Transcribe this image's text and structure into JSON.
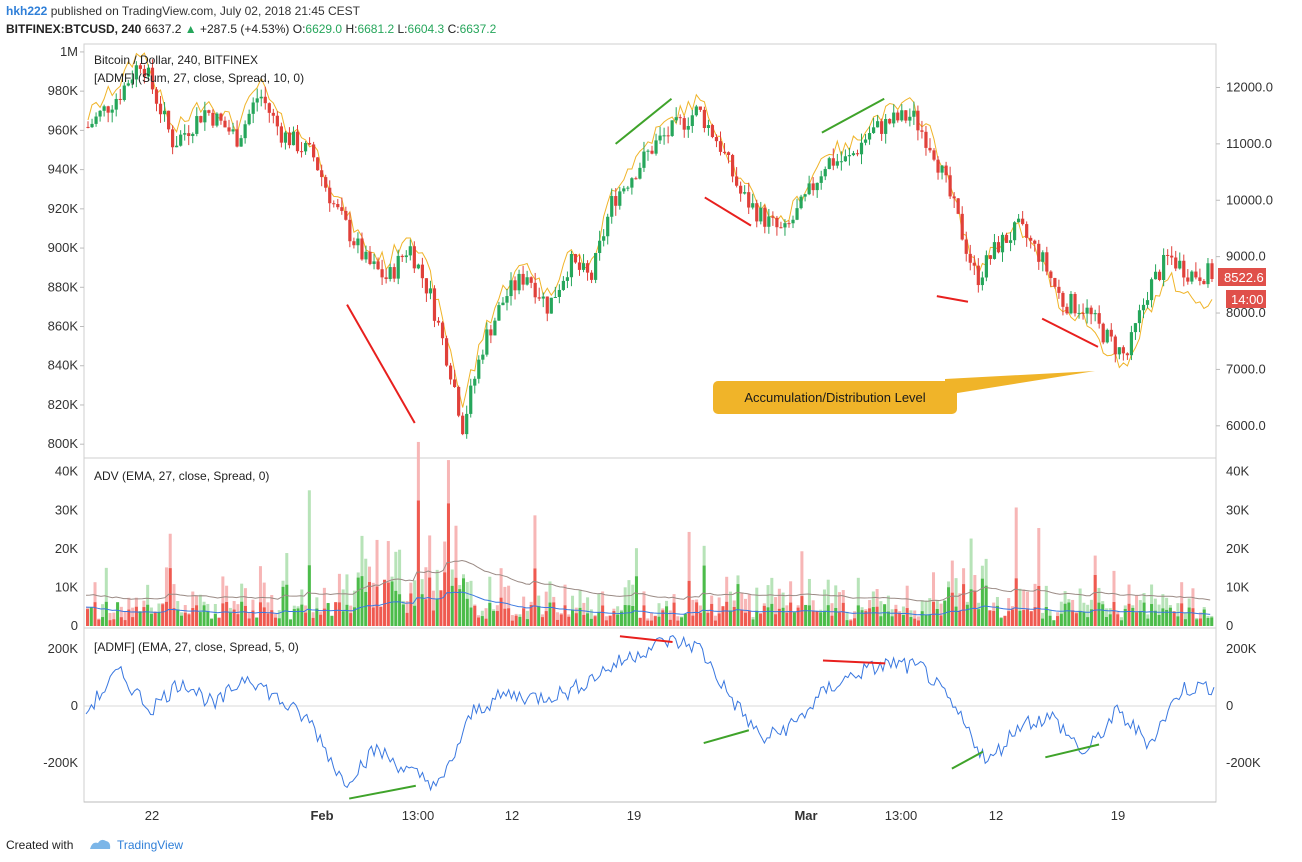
{
  "header": {
    "user": "hkh222",
    "published": "published on TradingView.com, July 02, 2018 21:45 CEST",
    "symbol": "BITFINEX:BTCUSD, 240",
    "last": "6637.2",
    "change_arrow": "▲",
    "change": "+287.5 (+4.53%)",
    "o_label": "O:",
    "o_val": "6629.0",
    "h_label": "H:",
    "h_val": "6681.2",
    "l_label": "L:",
    "l_val": "6604.3",
    "c_label": "C:",
    "c_val": "6637.2"
  },
  "panes": {
    "main_title": "Bitcoin / Dollar, 240, BITFINEX",
    "main_indicator": "[ADMF] (Sum, 27, close, Spread, 10, 0)",
    "volume_title": "ADV (EMA, 27, close, Spread, 0)",
    "osc_title": "[ADMF] (EMA, 27, close, Spread, 5, 0)"
  },
  "price_badge": "8522.6",
  "time_badge": "14:00",
  "annotation": "Accumulation/Distribution Level",
  "footer": {
    "created": "Created with",
    "brand": "TradingView"
  },
  "colors": {
    "up": "#26a65b",
    "down": "#e0403a",
    "adline": "#f0b429",
    "osc": "#3a78e0",
    "badge_price": "#e0504a",
    "badge_time": "#e0504a",
    "annotation_bg": "#f0b429",
    "trend_red": "#e8201e",
    "trend_green": "#3fa32a"
  },
  "chart_data": {
    "type": "line",
    "x_ticks": [
      "22",
      "Feb",
      "13:00",
      "12",
      "19",
      "Mar",
      "13:00",
      "12",
      "19"
    ],
    "price_axis": {
      "ticks": [
        "12000.0",
        "11000.0",
        "10000.0",
        "9000.0",
        "8000.0",
        "7000.0",
        "6000.0"
      ],
      "range": [
        5500,
        12700
      ]
    },
    "admf_sum_axis": {
      "ticks": [
        "1M",
        "980K",
        "960K",
        "940K",
        "920K",
        "900K",
        "880K",
        "860K",
        "840K",
        "820K",
        "800K"
      ],
      "range": [
        795000,
        1002000
      ]
    },
    "volume_axis": {
      "ticks": [
        "40K",
        "30K",
        "20K",
        "10K",
        "0"
      ],
      "range": [
        0,
        42000
      ]
    },
    "osc_axis": {
      "ticks": [
        "200K",
        "0",
        "-200K"
      ],
      "range": [
        -330000,
        260000
      ]
    },
    "price_series_approx": [
      {
        "t": 0,
        "v": 11300
      },
      {
        "t": 3,
        "v": 11900
      },
      {
        "t": 5,
        "v": 12500
      },
      {
        "t": 8,
        "v": 11000
      },
      {
        "t": 11,
        "v": 11600
      },
      {
        "t": 14,
        "v": 11100
      },
      {
        "t": 16,
        "v": 11900
      },
      {
        "t": 18,
        "v": 11200
      },
      {
        "t": 21,
        "v": 10800
      },
      {
        "t": 23,
        "v": 9900
      },
      {
        "t": 26,
        "v": 8900
      },
      {
        "t": 28,
        "v": 8600
      },
      {
        "t": 30,
        "v": 9200
      },
      {
        "t": 32,
        "v": 8300
      },
      {
        "t": 34,
        "v": 6900
      },
      {
        "t": 35,
        "v": 6000
      },
      {
        "t": 37,
        "v": 7500
      },
      {
        "t": 39,
        "v": 8300
      },
      {
        "t": 41,
        "v": 8700
      },
      {
        "t": 43,
        "v": 8100
      },
      {
        "t": 45,
        "v": 8900
      },
      {
        "t": 47,
        "v": 8600
      },
      {
        "t": 49,
        "v": 10000
      },
      {
        "t": 51,
        "v": 10500
      },
      {
        "t": 53,
        "v": 11000
      },
      {
        "t": 55,
        "v": 11300
      },
      {
        "t": 57,
        "v": 11600
      },
      {
        "t": 59,
        "v": 11000
      },
      {
        "t": 61,
        "v": 10100
      },
      {
        "t": 63,
        "v": 9700
      },
      {
        "t": 65,
        "v": 9400
      },
      {
        "t": 67,
        "v": 10000
      },
      {
        "t": 69,
        "v": 10700
      },
      {
        "t": 71,
        "v": 10700
      },
      {
        "t": 73,
        "v": 11200
      },
      {
        "t": 75,
        "v": 11400
      },
      {
        "t": 77,
        "v": 11500
      },
      {
        "t": 79,
        "v": 10900
      },
      {
        "t": 81,
        "v": 9800
      },
      {
        "t": 83,
        "v": 8600
      },
      {
        "t": 85,
        "v": 9200
      },
      {
        "t": 87,
        "v": 9500
      },
      {
        "t": 89,
        "v": 9000
      },
      {
        "t": 91,
        "v": 8200
      },
      {
        "t": 93,
        "v": 8100
      },
      {
        "t": 95,
        "v": 7600
      },
      {
        "t": 97,
        "v": 7200
      },
      {
        "t": 99,
        "v": 8400
      },
      {
        "t": 101,
        "v": 9000
      },
      {
        "t": 103,
        "v": 8700
      },
      {
        "t": 105,
        "v": 8700
      }
    ],
    "osc_series_approx": [
      {
        "t": 0,
        "v": -20000
      },
      {
        "t": 3,
        "v": 120000
      },
      {
        "t": 6,
        "v": -10000
      },
      {
        "t": 9,
        "v": 90000
      },
      {
        "t": 12,
        "v": 0
      },
      {
        "t": 15,
        "v": 110000
      },
      {
        "t": 18,
        "v": 20000
      },
      {
        "t": 21,
        "v": -60000
      },
      {
        "t": 24,
        "v": -270000
      },
      {
        "t": 27,
        "v": -150000
      },
      {
        "t": 30,
        "v": -230000
      },
      {
        "t": 33,
        "v": -280000
      },
      {
        "t": 36,
        "v": -20000
      },
      {
        "t": 39,
        "v": 40000
      },
      {
        "t": 42,
        "v": 30000
      },
      {
        "t": 45,
        "v": 50000
      },
      {
        "t": 48,
        "v": 120000
      },
      {
        "t": 51,
        "v": 180000
      },
      {
        "t": 54,
        "v": 230000
      },
      {
        "t": 57,
        "v": 210000
      },
      {
        "t": 60,
        "v": 30000
      },
      {
        "t": 63,
        "v": -120000
      },
      {
        "t": 66,
        "v": -60000
      },
      {
        "t": 69,
        "v": 60000
      },
      {
        "t": 72,
        "v": 120000
      },
      {
        "t": 75,
        "v": 150000
      },
      {
        "t": 78,
        "v": 130000
      },
      {
        "t": 81,
        "v": -20000
      },
      {
        "t": 84,
        "v": -200000
      },
      {
        "t": 87,
        "v": -60000
      },
      {
        "t": 90,
        "v": -40000
      },
      {
        "t": 93,
        "v": -170000
      },
      {
        "t": 96,
        "v": -20000
      },
      {
        "t": 99,
        "v": -130000
      },
      {
        "t": 102,
        "v": 60000
      },
      {
        "t": 105,
        "v": 70000
      }
    ]
  }
}
